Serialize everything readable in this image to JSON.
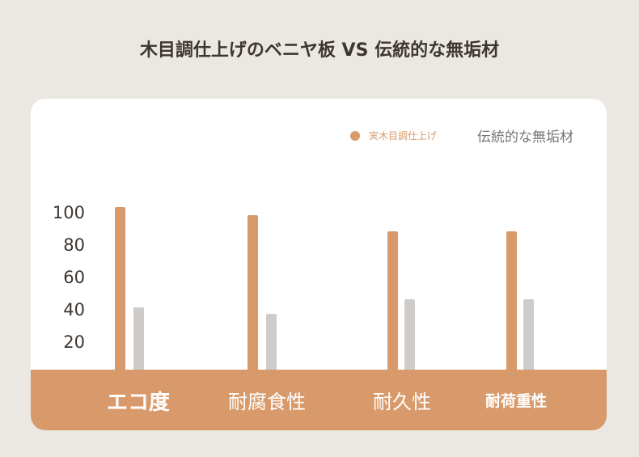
{
  "title": "木目調仕上げのベニヤ板 VS 伝統的な無垢材",
  "legend": {
    "series_a": "実木目調仕上げ",
    "series_b": "伝統的な無垢材"
  },
  "colors": {
    "series_a": "#d89a6a",
    "series_b": "#cfcbc9",
    "footer": "#d89a6a",
    "background": "#ebe8e4"
  },
  "chart_data": {
    "type": "bar",
    "categories": [
      "エコ度",
      "耐腐食性",
      "耐久性",
      "耐荷重性"
    ],
    "series": [
      {
        "name": "実木目調仕上げ",
        "values": [
          103,
          98,
          88,
          88
        ]
      },
      {
        "name": "伝統的な無垢材",
        "values": [
          41,
          37,
          46,
          46
        ]
      }
    ],
    "y_ticks": [
      "100",
      "80",
      "60",
      "40",
      "20"
    ],
    "ylim": [
      0,
      110
    ],
    "grid": false,
    "legend_position": "top-right"
  }
}
